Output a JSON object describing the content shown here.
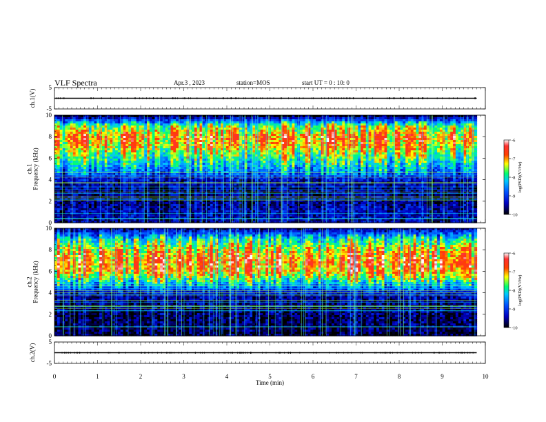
{
  "header": {
    "title": "VLF Spectra",
    "date": "Apr.3 , 2023",
    "station": "station=MOS",
    "start_ut": "start UT =  0 : 10: 0"
  },
  "chart_data": [
    {
      "type": "line",
      "panel": "ch1-waveform",
      "ylabel": "ch.1(V)",
      "ylim": [
        -5,
        5
      ],
      "yticks": [
        -5,
        5
      ],
      "xlim": [
        0,
        10
      ],
      "series": [
        {
          "x": [
            0,
            9.8
          ],
          "y": [
            0,
            0
          ]
        }
      ]
    },
    {
      "type": "heatmap",
      "panel": "ch1-spectrogram",
      "ylabel": "ch.1\nFrequency (kHz)",
      "ylim": [
        0,
        10
      ],
      "yticks": [
        0,
        2,
        4,
        6,
        8,
        10
      ],
      "xlim": [
        0,
        10
      ],
      "data_x_range": [
        0,
        9.8
      ],
      "band_profile_khz": [
        0,
        1,
        2,
        3,
        4,
        5,
        6,
        7,
        8,
        9,
        10
      ],
      "band_profile_logpsd": [
        -9.5,
        -9.4,
        -9.6,
        -9.6,
        -9.3,
        -8.4,
        -7.8,
        -7.2,
        -6.9,
        -7.6,
        -10
      ],
      "colorbar": {
        "label": "log(PSD)(V²/Hz)",
        "range": [
          -10,
          -6
        ],
        "ticks": [
          -10,
          -9,
          -8,
          -7,
          -6
        ]
      }
    },
    {
      "type": "heatmap",
      "panel": "ch2-spectrogram",
      "ylabel": "ch.2\nFrequency (kHz)",
      "ylim": [
        0,
        10
      ],
      "yticks": [
        0,
        2,
        4,
        6,
        8,
        10
      ],
      "xlim": [
        0,
        10
      ],
      "data_x_range": [
        0,
        9.8
      ],
      "band_profile_khz": [
        0,
        1,
        2,
        3,
        4,
        5,
        6,
        7,
        8,
        9,
        10
      ],
      "band_profile_logpsd": [
        -9.8,
        -9.7,
        -9.7,
        -9.6,
        -9.3,
        -8.0,
        -7.0,
        -6.8,
        -7.2,
        -8.0,
        -9.6
      ],
      "colorbar": {
        "label": "log(PSD)(V²/Hz)",
        "range": [
          -10,
          -6
        ],
        "ticks": [
          -10,
          -9,
          -8,
          -7,
          -6
        ]
      }
    },
    {
      "type": "line",
      "panel": "ch2-waveform",
      "ylabel": "ch.2(V)",
      "ylim": [
        -5,
        5
      ],
      "yticks": [
        -5,
        5
      ],
      "xlim": [
        0,
        10
      ],
      "series": [
        {
          "x": [
            0,
            9.8
          ],
          "y": [
            0,
            0
          ]
        }
      ]
    }
  ],
  "xaxis": {
    "label": "Time (min)",
    "ticks": [
      0,
      1,
      2,
      3,
      4,
      5,
      6,
      7,
      8,
      9,
      10
    ]
  }
}
